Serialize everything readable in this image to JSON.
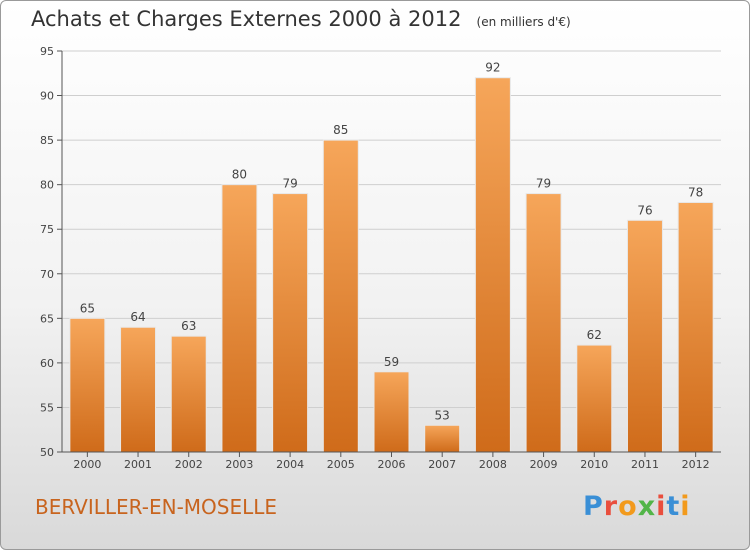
{
  "title": "Achats et Charges Externes 2000 à 2012",
  "unit": "(en milliers d'€)",
  "commune": "BERVILLER-EN-MOSELLE",
  "logo": {
    "text": "Proxiti",
    "letters": [
      {
        "ch": "P",
        "color": "#3a8fd6"
      },
      {
        "ch": "r",
        "color": "#e94e3d"
      },
      {
        "ch": "o",
        "color": "#f29a1c"
      },
      {
        "ch": "x",
        "color": "#52b548"
      },
      {
        "ch": "i",
        "color": "#e94e3d"
      },
      {
        "ch": "t",
        "color": "#3a8fd6"
      },
      {
        "ch": "i",
        "color": "#f29a1c"
      }
    ]
  },
  "colors": {
    "bar_top": "#f6a65a",
    "bar_bottom": "#cf6b1a",
    "grid": "#cfcfcf",
    "axis": "#555555"
  },
  "chart_data": {
    "type": "bar",
    "title": "Achats et Charges Externes 2000 à 2012",
    "subtitle": "(en milliers d'€)",
    "xlabel": "",
    "ylabel": "",
    "categories": [
      "2000",
      "2001",
      "2002",
      "2003",
      "2004",
      "2005",
      "2006",
      "2007",
      "2008",
      "2009",
      "2010",
      "2011",
      "2012"
    ],
    "values": [
      65,
      64,
      63,
      80,
      79,
      85,
      59,
      53,
      92,
      79,
      62,
      76,
      78
    ],
    "ylim": [
      50,
      95
    ],
    "yticks": [
      50,
      55,
      60,
      65,
      70,
      75,
      80,
      85,
      90,
      95
    ],
    "grid": true,
    "legend": "none"
  }
}
